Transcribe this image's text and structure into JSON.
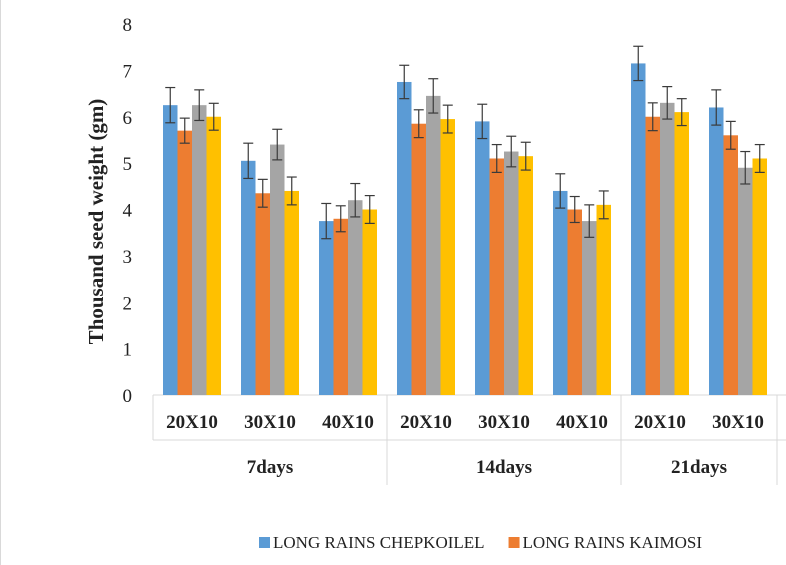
{
  "chart_data": {
    "type": "bar",
    "title": "",
    "ylabel": "Thousand seed weight (gm)",
    "xlabel": "",
    "ylim": [
      0,
      8
    ],
    "yticks": [
      "0",
      "1",
      "2",
      "3",
      "4",
      "5",
      "6",
      "7",
      "8"
    ],
    "grid": false,
    "legend_position": "bottom",
    "categories": [
      {
        "group": "7days",
        "label": "20X10"
      },
      {
        "group": "7days",
        "label": "30X10"
      },
      {
        "group": "7days",
        "label": "40X10"
      },
      {
        "group": "14days",
        "label": "20X10"
      },
      {
        "group": "14days",
        "label": "30X10"
      },
      {
        "group": "14days",
        "label": "40X10"
      },
      {
        "group": "21days",
        "label": "20X10"
      },
      {
        "group": "21days",
        "label": "30X10"
      }
    ],
    "groups": [
      {
        "label": "7days",
        "span": 3
      },
      {
        "label": "14days",
        "span": 3
      },
      {
        "label": "21days",
        "span": 2
      }
    ],
    "series": [
      {
        "name": "LONG RAINS CHEPKOILEL",
        "color": "#5B9BD5",
        "legend": true,
        "values": [
          6.25,
          5.05,
          3.75,
          6.75,
          5.9,
          4.4,
          7.15,
          6.2
        ],
        "errors": [
          0.38,
          0.38,
          0.38,
          0.36,
          0.37,
          0.37,
          0.37,
          0.38
        ]
      },
      {
        "name": "LONG RAINS KAIMOSI",
        "color": "#ED7D31",
        "legend": true,
        "values": [
          5.7,
          4.35,
          3.8,
          5.85,
          5.1,
          4.0,
          6.0,
          5.6
        ],
        "errors": [
          0.27,
          0.3,
          0.28,
          0.3,
          0.3,
          0.28,
          0.3,
          0.3
        ]
      },
      {
        "color": "#A5A5A5",
        "legend": false,
        "values": [
          6.25,
          5.4,
          4.2,
          6.45,
          5.25,
          3.75,
          6.3,
          4.9
        ],
        "errors": [
          0.33,
          0.33,
          0.36,
          0.37,
          0.33,
          0.35,
          0.35,
          0.35
        ]
      },
      {
        "color": "#FFC000",
        "legend": false,
        "values": [
          6.0,
          4.4,
          4.0,
          5.95,
          5.15,
          4.1,
          6.1,
          5.1
        ],
        "errors": [
          0.29,
          0.3,
          0.3,
          0.3,
          0.3,
          0.3,
          0.29,
          0.3
        ]
      }
    ]
  }
}
